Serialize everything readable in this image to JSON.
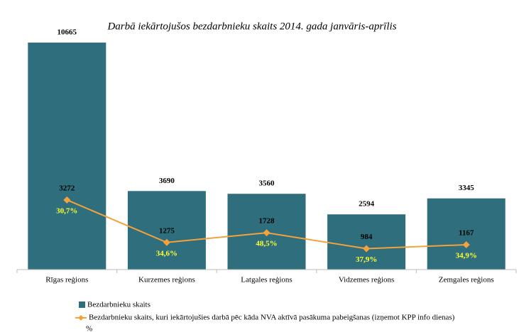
{
  "chart_data": {
    "type": "bar_line",
    "title": "Darbā iekārtojušos bezdarbnieku skaits 2014. gada  janvāris-aprīlis",
    "categories": [
      "Rīgas reģions",
      "Kurzemes reģions",
      "Latgales reģions",
      "Vidzemes reģions",
      "Zemgales reģions"
    ],
    "series": [
      {
        "name": "Bezdarbnieku skaits",
        "color": "#2f6e7d",
        "kind": "bar",
        "values": [
          10665,
          3690,
          3560,
          2594,
          3345
        ]
      },
      {
        "name": "Bezdarbnieku skaits, kuri  iekārtojušies darbā pēc kāda NVA aktīvā pasākuma pabeigšanas (izņemot KPP info dienas)",
        "color": "#f4a23c",
        "kind": "line",
        "values": [
          3272,
          1275,
          1728,
          984,
          1167
        ]
      }
    ],
    "annotations": [
      "30,7%",
      "34,6%",
      "48,5%",
      "37,9%",
      "34,9%"
    ],
    "legend_extra": "%",
    "ylim": [
      0,
      11000
    ]
  }
}
